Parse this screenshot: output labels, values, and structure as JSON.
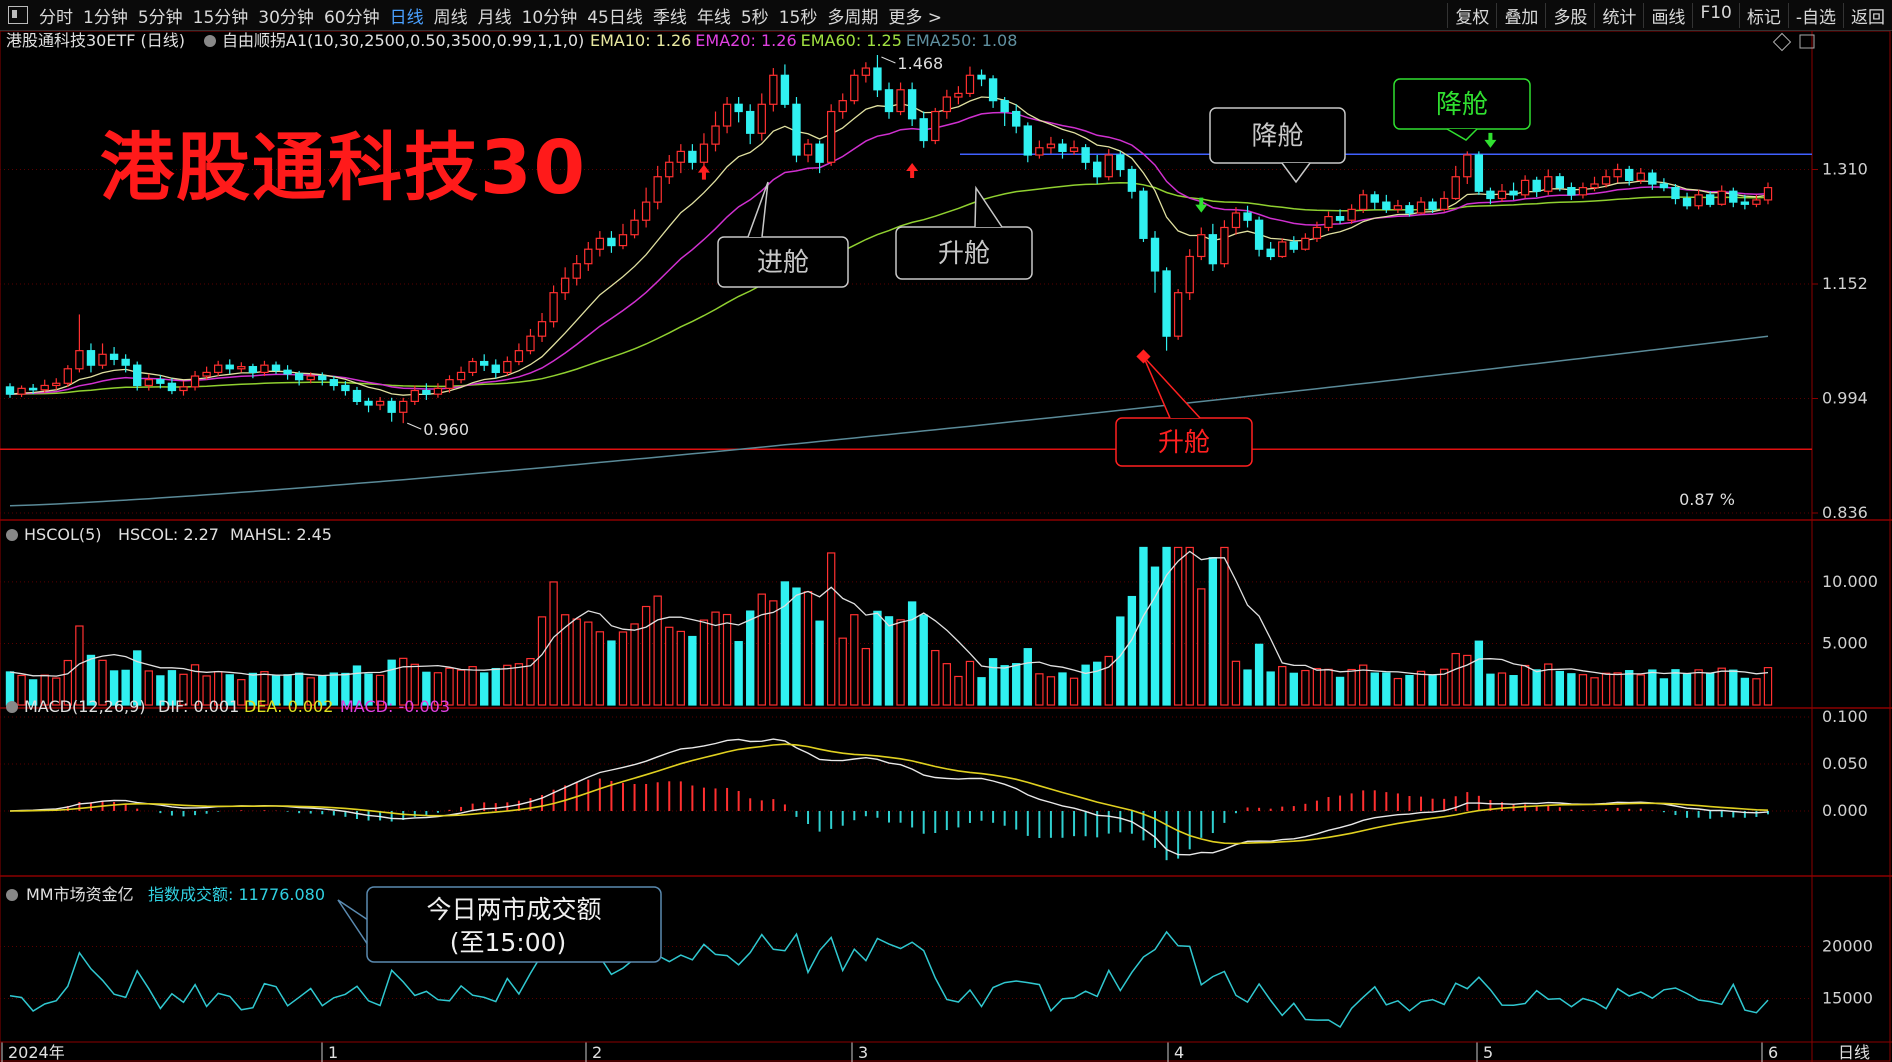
{
  "toolbar": {
    "items": [
      "分时",
      "1分钟",
      "5分钟",
      "15分钟",
      "30分钟",
      "60分钟",
      "日线",
      "周线",
      "月线",
      "10分钟",
      "45日线",
      "季线",
      "年线",
      "5秒",
      "15秒",
      "多周期",
      "更多 >"
    ],
    "active": "日线",
    "right_items": [
      "复权",
      "叠加",
      "多股",
      "统计",
      "画线",
      "F10",
      "标记",
      "-自选",
      "返回"
    ]
  },
  "main_panel": {
    "symbol": "港股通科技30ETF (日线)",
    "indicator": "自由顺拐A1(10,30,2500,0.50,3500,0.99,1,1,0)",
    "ema": [
      {
        "label": "EMA10: 1.26",
        "color": "#e8e8a0"
      },
      {
        "label": "EMA20: 1.26",
        "color": "#e040e0"
      },
      {
        "label": "EMA60: 1.25",
        "color": "#a0e040"
      },
      {
        "label": "EMA250: 1.08",
        "color": "#6090a0"
      }
    ],
    "big_title": "港股通科技30",
    "y_ticks": [
      "1.310",
      "1.152",
      "0.994",
      "0.836"
    ],
    "high_label": "1.468",
    "low_label": "0.960",
    "pct_label": "0.87 %",
    "annotations": {
      "enter": "进舱",
      "up1": "升舱",
      "down1": "降舱",
      "up2": "升舱",
      "down2": "降舱"
    }
  },
  "vol_panel": {
    "label": "HSCOL(5)",
    "hscol": "HSCOL: 2.27",
    "mahsl": "MAHSL: 2.45",
    "y_ticks": [
      "10.000",
      "5.000"
    ]
  },
  "macd_panel": {
    "label": "MACD(12,26,9)",
    "dif": "DIF: 0.001",
    "dea": "DEA: 0.002",
    "macd": "MACD: -0.003",
    "y_ticks": [
      "0.100",
      "0.050",
      "0.000"
    ]
  },
  "mm_panel": {
    "label": "MM市场资金亿",
    "value_label": "指数成交额: 11776.080",
    "callout_line1": "今日两市成交额",
    "callout_line2": "(至15:00)",
    "y_ticks": [
      "20000",
      "15000"
    ]
  },
  "x_axis": {
    "labels": [
      "2024年",
      "1",
      "2",
      "3",
      "4",
      "5",
      "6"
    ],
    "period_label": "日线"
  },
  "chart_data": {
    "type": "candlestick",
    "title": "港股通科技30ETF (日线)",
    "y_range": [
      0.836,
      1.468
    ],
    "reference_lines": {
      "resistance": 1.331,
      "support": 0.924
    },
    "candles": [
      [
        1.01,
        1.0,
        1.015,
        0.995
      ],
      [
        1.0,
        1.008,
        1.012,
        0.996
      ],
      [
        1.008,
        1.006,
        1.014,
        1.0
      ],
      [
        1.006,
        1.012,
        1.02,
        1.002
      ],
      [
        1.012,
        1.015,
        1.022,
        1.006
      ],
      [
        1.015,
        1.035,
        1.04,
        1.01
      ],
      [
        1.035,
        1.06,
        1.11,
        1.03
      ],
      [
        1.06,
        1.04,
        1.07,
        1.03
      ],
      [
        1.04,
        1.055,
        1.07,
        1.035
      ],
      [
        1.055,
        1.048,
        1.065,
        1.04
      ],
      [
        1.048,
        1.04,
        1.055,
        1.03
      ],
      [
        1.04,
        1.012,
        1.045,
        1.005
      ],
      [
        1.012,
        1.02,
        1.028,
        1.005
      ],
      [
        1.02,
        1.015,
        1.026,
        1.008
      ],
      [
        1.015,
        1.005,
        1.022,
        1.0
      ],
      [
        1.005,
        1.01,
        1.018,
        0.998
      ],
      [
        1.01,
        1.025,
        1.032,
        1.005
      ],
      [
        1.025,
        1.03,
        1.038,
        1.02
      ],
      [
        1.03,
        1.04,
        1.046,
        1.025
      ],
      [
        1.04,
        1.035,
        1.048,
        1.028
      ],
      [
        1.035,
        1.038,
        1.044,
        1.03
      ],
      [
        1.038,
        1.03,
        1.042,
        1.022
      ],
      [
        1.03,
        1.04,
        1.046,
        1.025
      ],
      [
        1.04,
        1.033,
        1.045,
        1.028
      ],
      [
        1.033,
        1.028,
        1.04,
        1.02
      ],
      [
        1.028,
        1.02,
        1.032,
        1.012
      ],
      [
        1.02,
        1.025,
        1.03,
        1.015
      ],
      [
        1.025,
        1.02,
        1.03,
        1.012
      ],
      [
        1.02,
        1.012,
        1.025,
        1.005
      ],
      [
        1.012,
        1.005,
        1.018,
        0.998
      ],
      [
        1.005,
        0.99,
        1.01,
        0.985
      ],
      [
        0.99,
        0.985,
        0.995,
        0.975
      ],
      [
        0.985,
        0.99,
        0.996,
        0.978
      ],
      [
        0.99,
        0.975,
        0.995,
        0.962
      ],
      [
        0.975,
        0.99,
        0.995,
        0.96
      ],
      [
        0.99,
        1.005,
        1.012,
        0.985
      ],
      [
        1.005,
        1.0,
        1.015,
        0.992
      ],
      [
        1.0,
        1.008,
        1.015,
        0.995
      ],
      [
        1.008,
        1.02,
        1.026,
        1.002
      ],
      [
        1.02,
        1.03,
        1.038,
        1.015
      ],
      [
        1.03,
        1.045,
        1.05,
        1.025
      ],
      [
        1.045,
        1.04,
        1.055,
        1.032
      ],
      [
        1.04,
        1.03,
        1.048,
        1.022
      ],
      [
        1.03,
        1.045,
        1.052,
        1.025
      ],
      [
        1.045,
        1.06,
        1.07,
        1.04
      ],
      [
        1.06,
        1.08,
        1.09,
        1.055
      ],
      [
        1.08,
        1.1,
        1.112,
        1.072
      ],
      [
        1.1,
        1.14,
        1.15,
        1.092
      ],
      [
        1.14,
        1.16,
        1.175,
        1.13
      ],
      [
        1.16,
        1.18,
        1.192,
        1.15
      ],
      [
        1.18,
        1.2,
        1.21,
        1.17
      ],
      [
        1.2,
        1.215,
        1.225,
        1.19
      ],
      [
        1.215,
        1.205,
        1.225,
        1.195
      ],
      [
        1.205,
        1.22,
        1.235,
        1.2
      ],
      [
        1.22,
        1.24,
        1.255,
        1.215
      ],
      [
        1.24,
        1.265,
        1.285,
        1.23
      ],
      [
        1.265,
        1.3,
        1.315,
        1.255
      ],
      [
        1.3,
        1.32,
        1.33,
        1.29
      ],
      [
        1.32,
        1.335,
        1.345,
        1.305
      ],
      [
        1.335,
        1.32,
        1.345,
        1.31
      ],
      [
        1.32,
        1.345,
        1.36,
        1.315
      ],
      [
        1.345,
        1.37,
        1.39,
        1.335
      ],
      [
        1.37,
        1.4,
        1.41,
        1.36
      ],
      [
        1.4,
        1.39,
        1.41,
        1.375
      ],
      [
        1.39,
        1.36,
        1.4,
        1.345
      ],
      [
        1.36,
        1.4,
        1.415,
        1.35
      ],
      [
        1.4,
        1.44,
        1.45,
        1.39
      ],
      [
        1.44,
        1.4,
        1.455,
        1.395
      ],
      [
        1.4,
        1.33,
        1.41,
        1.32
      ],
      [
        1.33,
        1.345,
        1.352,
        1.32
      ],
      [
        1.345,
        1.32,
        1.35,
        1.305
      ],
      [
        1.32,
        1.39,
        1.4,
        1.315
      ],
      [
        1.39,
        1.405,
        1.415,
        1.38
      ],
      [
        1.405,
        1.44,
        1.448,
        1.4
      ],
      [
        1.44,
        1.45,
        1.458,
        1.43
      ],
      [
        1.45,
        1.42,
        1.468,
        1.41
      ],
      [
        1.42,
        1.39,
        1.43,
        1.38
      ],
      [
        1.39,
        1.42,
        1.43,
        1.385
      ],
      [
        1.42,
        1.38,
        1.43,
        1.37
      ],
      [
        1.38,
        1.35,
        1.39,
        1.34
      ],
      [
        1.35,
        1.39,
        1.395,
        1.345
      ],
      [
        1.39,
        1.41,
        1.42,
        1.38
      ],
      [
        1.41,
        1.415,
        1.425,
        1.4
      ],
      [
        1.415,
        1.44,
        1.452,
        1.41
      ],
      [
        1.44,
        1.435,
        1.448,
        1.425
      ],
      [
        1.435,
        1.405,
        1.44,
        1.395
      ],
      [
        1.405,
        1.39,
        1.41,
        1.37
      ],
      [
        1.39,
        1.37,
        1.4,
        1.36
      ],
      [
        1.37,
        1.33,
        1.375,
        1.32
      ],
      [
        1.33,
        1.34,
        1.35,
        1.325
      ],
      [
        1.34,
        1.345,
        1.355,
        1.332
      ],
      [
        1.345,
        1.335,
        1.352,
        1.325
      ],
      [
        1.335,
        1.34,
        1.35,
        1.33
      ],
      [
        1.34,
        1.32,
        1.345,
        1.31
      ],
      [
        1.32,
        1.3,
        1.33,
        1.29
      ],
      [
        1.3,
        1.33,
        1.338,
        1.295
      ],
      [
        1.33,
        1.31,
        1.335,
        1.3
      ],
      [
        1.31,
        1.28,
        1.315,
        1.27
      ],
      [
        1.28,
        1.215,
        1.285,
        1.21
      ],
      [
        1.215,
        1.17,
        1.225,
        1.14
      ],
      [
        1.17,
        1.08,
        1.175,
        1.06
      ],
      [
        1.08,
        1.14,
        1.145,
        1.075
      ],
      [
        1.14,
        1.19,
        1.2,
        1.13
      ],
      [
        1.19,
        1.22,
        1.23,
        1.185
      ],
      [
        1.22,
        1.18,
        1.235,
        1.17
      ],
      [
        1.18,
        1.23,
        1.24,
        1.175
      ],
      [
        1.23,
        1.25,
        1.258,
        1.22
      ],
      [
        1.25,
        1.24,
        1.26,
        1.23
      ],
      [
        1.24,
        1.2,
        1.245,
        1.19
      ],
      [
        1.2,
        1.19,
        1.21,
        1.185
      ],
      [
        1.19,
        1.21,
        1.215,
        1.188
      ],
      [
        1.21,
        1.2,
        1.218,
        1.195
      ],
      [
        1.2,
        1.215,
        1.222,
        1.198
      ],
      [
        1.215,
        1.23,
        1.238,
        1.21
      ],
      [
        1.23,
        1.245,
        1.252,
        1.225
      ],
      [
        1.245,
        1.24,
        1.255,
        1.235
      ],
      [
        1.24,
        1.255,
        1.262,
        1.235
      ],
      [
        1.255,
        1.275,
        1.282,
        1.25
      ],
      [
        1.275,
        1.265,
        1.28,
        1.255
      ],
      [
        1.265,
        1.255,
        1.275,
        1.25
      ],
      [
        1.255,
        1.26,
        1.268,
        1.25
      ],
      [
        1.26,
        1.25,
        1.265,
        1.245
      ],
      [
        1.25,
        1.265,
        1.272,
        1.248
      ],
      [
        1.265,
        1.255,
        1.27,
        1.25
      ],
      [
        1.255,
        1.27,
        1.28,
        1.252
      ],
      [
        1.27,
        1.3,
        1.315,
        1.268
      ],
      [
        1.3,
        1.33,
        1.335,
        1.29
      ],
      [
        1.33,
        1.28,
        1.335,
        1.275
      ],
      [
        1.28,
        1.27,
        1.285,
        1.262
      ],
      [
        1.27,
        1.28,
        1.29,
        1.265
      ],
      [
        1.28,
        1.275,
        1.292,
        1.268
      ],
      [
        1.275,
        1.295,
        1.302,
        1.27
      ],
      [
        1.295,
        1.28,
        1.3,
        1.272
      ],
      [
        1.28,
        1.3,
        1.31,
        1.275
      ],
      [
        1.3,
        1.285,
        1.305,
        1.28
      ],
      [
        1.285,
        1.275,
        1.292,
        1.268
      ],
      [
        1.275,
        1.285,
        1.292,
        1.27
      ],
      [
        1.285,
        1.29,
        1.3,
        1.28
      ],
      [
        1.29,
        1.3,
        1.31,
        1.285
      ],
      [
        1.3,
        1.31,
        1.318,
        1.292
      ],
      [
        1.31,
        1.295,
        1.315,
        1.288
      ],
      [
        1.295,
        1.305,
        1.312,
        1.29
      ],
      [
        1.305,
        1.29,
        1.31,
        1.282
      ],
      [
        1.29,
        1.285,
        1.298,
        1.28
      ],
      [
        1.285,
        1.27,
        1.29,
        1.262
      ],
      [
        1.27,
        1.26,
        1.278,
        1.255
      ],
      [
        1.26,
        1.275,
        1.282,
        1.255
      ],
      [
        1.275,
        1.262,
        1.28,
        1.258
      ],
      [
        1.262,
        1.28,
        1.288,
        1.26
      ],
      [
        1.28,
        1.265,
        1.285,
        1.258
      ],
      [
        1.265,
        1.262,
        1.275,
        1.255
      ],
      [
        1.262,
        1.268,
        1.275,
        1.258
      ],
      [
        1.268,
        1.285,
        1.292,
        1.262
      ]
    ],
    "ema250": [
      0.846,
      1.08
    ],
    "hscol_range": [
      0,
      13
    ],
    "macd_range": [
      -0.066,
      0.1
    ],
    "mm_range": [
      11000,
      24000
    ]
  }
}
